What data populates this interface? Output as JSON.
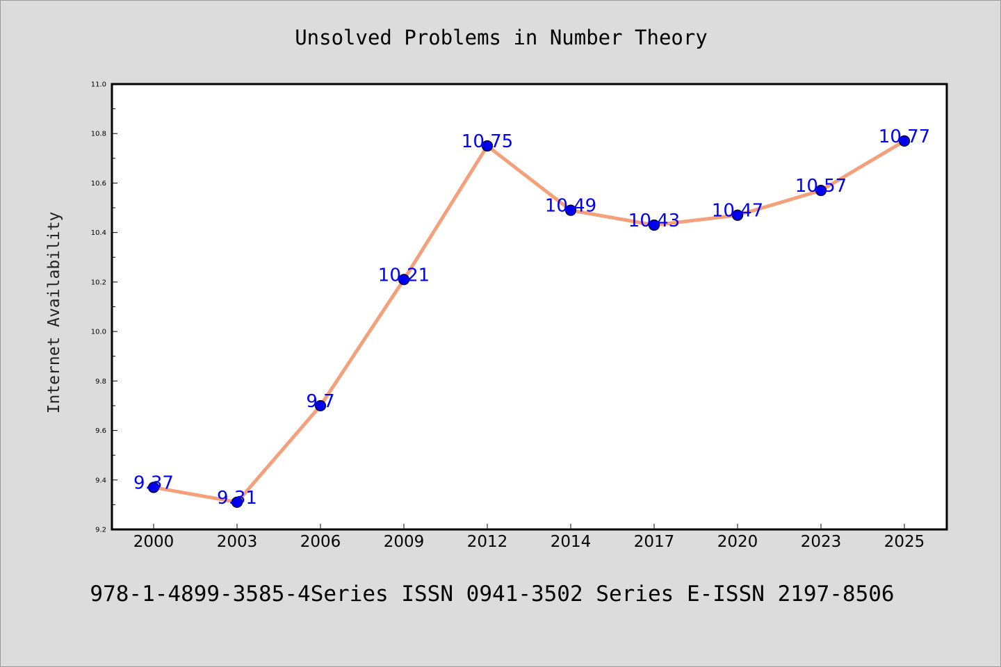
{
  "chart_data": {
    "type": "line",
    "title": "Unsolved Problems in Number Theory",
    "xlabel": "",
    "ylabel": "Internet Availability",
    "categories": [
      "2000",
      "2003",
      "2006",
      "2009",
      "2012",
      "2014",
      "2017",
      "2020",
      "2023",
      "2025"
    ],
    "values": [
      9.37,
      9.31,
      9.7,
      10.21,
      10.75,
      10.49,
      10.43,
      10.47,
      10.57,
      10.77
    ],
    "data_labels": [
      "9.37",
      "9.31",
      "9.7",
      "10.21",
      "10.75",
      "10.49",
      "10.43",
      "10.47",
      "10.57",
      "10.77"
    ],
    "ylim": [
      9.2,
      11.0
    ],
    "yticks": [
      "9.2",
      "9.4",
      "9.6",
      "9.8",
      "10.0",
      "10.2",
      "10.4",
      "10.6",
      "10.8",
      "11.0"
    ],
    "grid": false,
    "line_color": "#f4a07a",
    "marker_color": "#0000ee",
    "label_color": "#0000ff",
    "footer": "978-1-4899-3585-4Series ISSN 0941-3502 Series E-ISSN 2197-8506"
  }
}
